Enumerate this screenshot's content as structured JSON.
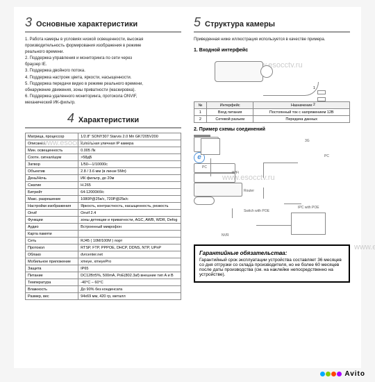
{
  "watermark": "www.esocctv.ru",
  "sections": {
    "s3": {
      "num": "3",
      "title": "Основные характеристики"
    },
    "s4": {
      "num": "4",
      "title": "Характеристики"
    },
    "s5": {
      "num": "5",
      "title": "Структура камеры"
    }
  },
  "features": {
    "l1": "1. Работа камеры в условиях низкой освещенности, высокая",
    "l2": "производительность формирования изображения в режиме",
    "l3": "реального времени.",
    "l4": "2. Поддержка управления и мониторинга по сети через",
    "l5": "браузер IE.",
    "l6": "3. Поддержка двойного потока.",
    "l7": "4. Поддержка настроек цвета, яркости, насыщенности.",
    "l8": "5. Поддержка передачи видео в режиме реального времени,",
    "l9": "обнаружение движения, зоны приватности (маскировка).",
    "l10": "6. Поддержка удаленного мониторинга, протокола ONVIF,",
    "l11": "механический ИК-фильтр."
  },
  "specs": [
    [
      "Матрица, процессор",
      "1/2.8\" SONY307 Starvis 2.0 Мп GK7205V200"
    ],
    [
      "Описание",
      "Купольная уличная IP камера"
    ],
    [
      "Мин. освещенность",
      "0.005 Лк"
    ],
    [
      "Соотн. сигнал/шум",
      ">58дБ"
    ],
    [
      "Затвор",
      "1/50—1/10000с"
    ],
    [
      "Объектив",
      "2.8 / 3.6 мм (в линзе 5Мп)"
    ],
    [
      "День/Ночь",
      "ИК фильтр, до 20м"
    ],
    [
      "Сжатие",
      "H.265"
    ],
    [
      "Битрейт",
      "64-12000Кб/с"
    ],
    [
      "Макс. разрешение",
      "1080P@25к/с, 720P@25к/с"
    ],
    [
      "Настройки изображения",
      "Яркость, контрастность, насыщенность, резкость"
    ],
    [
      "Onvif",
      "Onvif 2.4"
    ],
    [
      "Функции",
      "зоны детекции и приватности, AGC, AWB, WDR, Defog"
    ],
    [
      "Аудио",
      "Встроенный микрофон"
    ],
    [
      "Карта памяти",
      ""
    ],
    [
      "Сеть",
      "RJ45 ( 10M/100M ) порт"
    ],
    [
      "Протокол",
      "RTSP, FTP, PPPOE, DHCP, DDNS, NTP, UPnP"
    ],
    [
      "Облако",
      "dvrcenter.net"
    ],
    [
      "Мобильное приложение",
      "xmeye, xmeyePro"
    ],
    [
      "Защита",
      "IP65"
    ],
    [
      "Питание",
      "DC12В±5%,  500mA, PoE(802.3af) внешние тип A и B"
    ],
    [
      "Температура",
      "-40°C – 60°C"
    ],
    [
      "Влажность",
      "До 90% без конденсата"
    ],
    [
      "Размер, вес",
      "94х69 мм, 420 гр, металл"
    ]
  ],
  "right": {
    "intro": "Приведенная ниже иллюстрация используется  в качестве примера.",
    "sub1": "1. Входной интерфейс",
    "sub2": "2. Пример схемы соединений",
    "iface_head": [
      "№",
      "Интерфейс",
      "Назначение"
    ],
    "iface_rows": [
      [
        "1",
        "Вход питания",
        "Постоянный ток с напряжением 12В"
      ],
      [
        "2",
        "Сетевой разъем",
        "Передача данных"
      ]
    ],
    "diag": {
      "c1": "1",
      "c2": "2",
      "pc": "PC",
      "g3": "3G",
      "wifi": "WiFi",
      "router": "Router",
      "switch": "Switch with POE",
      "nvr": "NVR",
      "ipc": "IPC with POE"
    }
  },
  "warranty": {
    "title": "Гарантийные обязательства:",
    "body": "Гарантийный срок эксплуатации устройства составляет 36 месяцев со дня отгрузки со склада производителя, но не более 60 месяцев после даты производства (см. на наклейке непосредственно на устройстве)."
  },
  "avito": {
    "text": "Avito",
    "colors": [
      "#0af",
      "#8c0",
      "#f40",
      "#a0f"
    ]
  }
}
